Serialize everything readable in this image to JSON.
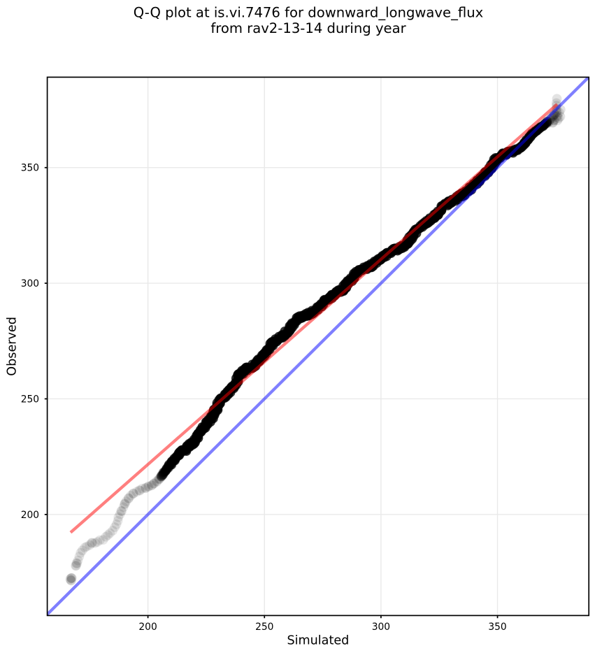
{
  "figure": {
    "title_line1": "Q-Q plot at is.vi.7476 for downward_longwave_flux",
    "title_line2": "from rav2-13-14 during year",
    "xlabel": "Simulated",
    "ylabel": "Observed"
  },
  "chart_data": {
    "type": "scatter",
    "title": "Q-Q plot at is.vi.7476 for downward_longwave_flux from rav2-13-14 during year",
    "xlabel": "Simulated",
    "ylabel": "Observed",
    "xlim": [
      156.8,
      389.2
    ],
    "ylim": [
      156.3,
      389.1
    ],
    "xticks": [
      200,
      250,
      300,
      350
    ],
    "yticks": [
      200,
      250,
      300,
      350
    ],
    "grid": true,
    "grid_color": "#e9e9e9",
    "background_color": "#ffffff",
    "identity_line": {
      "name": "identity y=x",
      "color": "#0000ff",
      "alpha": 0.5,
      "from": [
        156.8,
        156.8
      ],
      "to": [
        389.1,
        389.1
      ]
    },
    "fit_line": {
      "name": "quantile fit",
      "color": "#ff0000",
      "alpha": 0.5,
      "from": [
        166.8,
        192.2
      ],
      "to": [
        375.6,
        377.4
      ]
    },
    "scatter": {
      "name": "quantile points (simulated vs observed)",
      "color": "#000000",
      "alpha": 0.095,
      "marker_radius_px": 6.85,
      "quantile_curve": [
        [
          167.0,
          172.0
        ],
        [
          169.3,
          178.6
        ],
        [
          171.0,
          182.8
        ],
        [
          173.0,
          185.6
        ],
        [
          175.0,
          187.0
        ],
        [
          177.5,
          187.9
        ],
        [
          180.0,
          189.0
        ],
        [
          182.5,
          190.6
        ],
        [
          184.5,
          192.6
        ],
        [
          186.0,
          195.0
        ],
        [
          187.5,
          198.3
        ],
        [
          189.0,
          202.3
        ],
        [
          190.5,
          205.8
        ],
        [
          192.0,
          207.8
        ],
        [
          194.0,
          209.5
        ],
        [
          196.5,
          210.8
        ],
        [
          199.0,
          211.7
        ],
        [
          201.5,
          212.6
        ],
        [
          203.5,
          214.0
        ],
        [
          206.0,
          217.3
        ],
        [
          208.0,
          220.0
        ],
        [
          210.0,
          221.8
        ],
        [
          212.5,
          224.2
        ],
        [
          215.0,
          227.0
        ],
        [
          217.5,
          229.4
        ],
        [
          220.0,
          232.0
        ],
        [
          222.5,
          235.3
        ],
        [
          225.0,
          239.4
        ],
        [
          227.5,
          243.3
        ],
        [
          230.0,
          247.3
        ],
        [
          232.5,
          250.4
        ],
        [
          235.0,
          253.1
        ],
        [
          237.5,
          256.6
        ],
        [
          240.0,
          260.2
        ],
        [
          242.5,
          262.3
        ],
        [
          245.0,
          264.6
        ],
        [
          247.5,
          267.4
        ],
        [
          250.0,
          270.3
        ],
        [
          252.5,
          272.6
        ],
        [
          255.0,
          274.9
        ],
        [
          257.5,
          277.4
        ],
        [
          260.0,
          279.8
        ],
        [
          262.5,
          282.0
        ],
        [
          265.0,
          284.0
        ],
        [
          267.5,
          285.9
        ],
        [
          270.0,
          287.7
        ],
        [
          272.5,
          289.7
        ],
        [
          275.0,
          291.4
        ],
        [
          277.5,
          293.1
        ],
        [
          280.0,
          294.8
        ],
        [
          282.5,
          297.0
        ],
        [
          285.0,
          299.3
        ],
        [
          287.5,
          301.5
        ],
        [
          290.0,
          303.7
        ],
        [
          292.5,
          305.6
        ],
        [
          295.0,
          307.4
        ],
        [
          297.5,
          309.2
        ],
        [
          300.0,
          311.1
        ],
        [
          302.5,
          312.6
        ],
        [
          305.0,
          314.1
        ],
        [
          307.5,
          315.6
        ],
        [
          310.0,
          317.1
        ],
        [
          312.5,
          319.4
        ],
        [
          315.0,
          321.8
        ],
        [
          317.5,
          324.2
        ],
        [
          320.0,
          326.6
        ],
        [
          322.5,
          328.9
        ],
        [
          325.0,
          331.1
        ],
        [
          327.5,
          333.4
        ],
        [
          330.0,
          335.6
        ],
        [
          332.5,
          337.6
        ],
        [
          335.0,
          339.1
        ],
        [
          337.5,
          340.6
        ],
        [
          340.0,
          341.8
        ],
        [
          342.5,
          344.3
        ],
        [
          345.0,
          347.4
        ],
        [
          347.5,
          350.7
        ],
        [
          350.0,
          353.6
        ],
        [
          352.5,
          355.4
        ],
        [
          355.0,
          356.6
        ],
        [
          357.5,
          357.7
        ],
        [
          360.0,
          358.9
        ],
        [
          362.5,
          361.8
        ],
        [
          365.0,
          364.5
        ],
        [
          367.5,
          366.7
        ],
        [
          370.0,
          368.5
        ],
        [
          372.5,
          370.9
        ],
        [
          375.0,
          373.5
        ]
      ],
      "dense_range": [
        205.5,
        371.5
      ],
      "tail_points": [
        [
          166.9,
          171.5,
          2
        ],
        [
          167.2,
          172.5,
          3
        ],
        [
          166.7,
          172.2,
          1
        ],
        [
          169.1,
          177.8,
          2
        ],
        [
          169.5,
          178.9,
          2
        ],
        [
          169.8,
          179.9,
          1
        ],
        [
          170.5,
          181.6,
          1
        ],
        [
          171.2,
          183.2,
          1
        ],
        [
          172.0,
          184.6,
          1
        ],
        [
          172.9,
          185.5,
          1
        ],
        [
          173.9,
          186.3,
          1
        ],
        [
          175.0,
          186.9,
          1
        ],
        [
          176.1,
          187.6,
          2
        ],
        [
          177.3,
          187.7,
          1
        ],
        [
          178.4,
          188.2,
          1
        ],
        [
          179.5,
          188.8,
          1
        ],
        [
          180.7,
          189.2,
          1
        ],
        [
          181.9,
          190.2,
          1
        ],
        [
          182.9,
          191.0,
          1
        ],
        [
          183.9,
          192.0,
          1
        ],
        [
          184.8,
          193.1,
          1
        ],
        [
          185.6,
          194.3,
          1
        ],
        [
          186.3,
          195.7,
          1
        ],
        [
          186.9,
          197.1,
          1
        ],
        [
          187.5,
          198.6,
          1
        ],
        [
          188.1,
          200.1,
          1
        ],
        [
          188.7,
          201.6,
          2
        ],
        [
          189.3,
          203.1,
          1
        ],
        [
          190.0,
          204.6,
          2
        ],
        [
          190.8,
          205.9,
          1
        ],
        [
          191.7,
          207.1,
          2
        ],
        [
          192.7,
          208.2,
          1
        ],
        [
          193.8,
          209.1,
          2
        ],
        [
          195.0,
          209.9,
          1
        ],
        [
          196.3,
          210.5,
          2
        ],
        [
          197.6,
          211.0,
          1
        ],
        [
          198.9,
          211.5,
          2
        ],
        [
          200.2,
          212.0,
          2
        ],
        [
          201.5,
          212.6,
          2
        ],
        [
          202.7,
          213.4,
          2
        ],
        [
          203.8,
          214.3,
          2
        ],
        [
          204.8,
          215.3,
          3
        ],
        [
          205.7,
          216.4,
          3
        ]
      ],
      "top_points": [
        [
          371.3,
          369.0,
          2
        ],
        [
          372.0,
          369.9,
          2
        ],
        [
          372.7,
          370.8,
          2
        ],
        [
          373.4,
          371.7,
          2
        ],
        [
          374.0,
          372.4,
          2
        ],
        [
          374.6,
          373.1,
          2
        ],
        [
          375.1,
          373.8,
          1
        ],
        [
          375.5,
          374.5,
          1
        ],
        [
          375.3,
          375.6,
          1
        ],
        [
          375.5,
          376.7,
          1
        ],
        [
          375.4,
          377.8,
          1
        ],
        [
          375.4,
          379.6,
          1
        ],
        [
          375.9,
          372.6,
          1
        ],
        [
          376.6,
          373.6,
          1
        ],
        [
          377.2,
          374.8,
          1
        ],
        [
          376.2,
          371.2,
          1
        ],
        [
          377.0,
          372.0,
          1
        ],
        [
          373.6,
          369.6,
          2
        ],
        [
          374.4,
          370.7,
          2
        ],
        [
          375.2,
          371.8,
          1
        ],
        [
          376.0,
          370.5,
          1
        ]
      ]
    }
  }
}
